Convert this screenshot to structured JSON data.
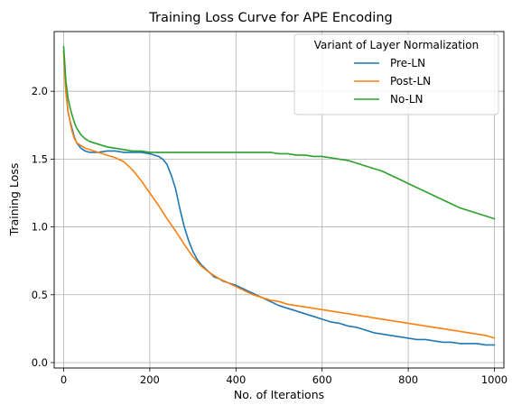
{
  "chart_data": {
    "type": "line",
    "title": "Training Loss Curve for APE Encoding",
    "xlabel": "No. of Iterations",
    "ylabel": "Training Loss",
    "xlim": [
      -22,
      1022
    ],
    "ylim": [
      -0.04,
      2.44
    ],
    "xticks": [
      0,
      200,
      400,
      600,
      800,
      1000
    ],
    "xtick_labels": [
      "0",
      "200",
      "400",
      "600",
      "800",
      "1000"
    ],
    "yticks": [
      0.0,
      0.5,
      1.0,
      1.5,
      2.0
    ],
    "ytick_labels": [
      "0.0",
      "0.5",
      "1.0",
      "1.5",
      "2.0"
    ],
    "grid": true,
    "legend": {
      "title": "Variant of Layer Normalization",
      "placement": "top-right"
    },
    "series": [
      {
        "name": "Pre-LN",
        "color": "#1f77b4",
        "x": [
          0,
          5,
          10,
          15,
          20,
          25,
          30,
          40,
          50,
          60,
          80,
          100,
          120,
          140,
          160,
          180,
          200,
          210,
          220,
          230,
          240,
          250,
          260,
          270,
          280,
          290,
          300,
          310,
          320,
          330,
          340,
          350,
          360,
          370,
          380,
          390,
          400,
          420,
          440,
          460,
          480,
          500,
          520,
          540,
          560,
          580,
          600,
          620,
          640,
          660,
          680,
          700,
          720,
          740,
          760,
          780,
          800,
          820,
          840,
          860,
          880,
          900,
          920,
          940,
          960,
          980,
          1000
        ],
        "values": [
          2.3,
          2.0,
          1.85,
          1.78,
          1.72,
          1.66,
          1.62,
          1.58,
          1.56,
          1.55,
          1.55,
          1.56,
          1.56,
          1.55,
          1.55,
          1.55,
          1.54,
          1.53,
          1.52,
          1.5,
          1.46,
          1.38,
          1.28,
          1.13,
          1.0,
          0.9,
          0.82,
          0.76,
          0.72,
          0.69,
          0.66,
          0.63,
          0.62,
          0.6,
          0.59,
          0.58,
          0.57,
          0.54,
          0.51,
          0.48,
          0.45,
          0.42,
          0.4,
          0.38,
          0.36,
          0.34,
          0.32,
          0.3,
          0.29,
          0.27,
          0.26,
          0.24,
          0.22,
          0.21,
          0.2,
          0.19,
          0.18,
          0.17,
          0.17,
          0.16,
          0.15,
          0.15,
          0.14,
          0.14,
          0.14,
          0.13,
          0.13
        ]
      },
      {
        "name": "Post-LN",
        "color": "#ff7f0e",
        "x": [
          0,
          5,
          10,
          15,
          20,
          25,
          30,
          40,
          50,
          60,
          80,
          100,
          120,
          140,
          160,
          180,
          200,
          220,
          240,
          260,
          280,
          300,
          320,
          340,
          360,
          380,
          400,
          420,
          440,
          460,
          480,
          500,
          520,
          540,
          560,
          580,
          600,
          620,
          640,
          660,
          680,
          700,
          720,
          740,
          760,
          780,
          800,
          820,
          840,
          860,
          880,
          900,
          920,
          940,
          960,
          980,
          1000
        ],
        "values": [
          2.28,
          2.0,
          1.86,
          1.77,
          1.7,
          1.65,
          1.62,
          1.6,
          1.58,
          1.57,
          1.55,
          1.53,
          1.51,
          1.48,
          1.42,
          1.34,
          1.25,
          1.16,
          1.06,
          0.97,
          0.87,
          0.78,
          0.71,
          0.66,
          0.62,
          0.59,
          0.56,
          0.53,
          0.5,
          0.48,
          0.46,
          0.45,
          0.43,
          0.42,
          0.41,
          0.4,
          0.39,
          0.38,
          0.37,
          0.36,
          0.35,
          0.34,
          0.33,
          0.32,
          0.31,
          0.3,
          0.29,
          0.28,
          0.27,
          0.26,
          0.25,
          0.24,
          0.23,
          0.22,
          0.21,
          0.2,
          0.18
        ]
      },
      {
        "name": "No-LN",
        "color": "#2ca02c",
        "x": [
          0,
          5,
          10,
          15,
          20,
          25,
          30,
          40,
          50,
          60,
          80,
          100,
          120,
          140,
          160,
          180,
          200,
          220,
          240,
          260,
          280,
          300,
          320,
          340,
          360,
          380,
          400,
          420,
          440,
          460,
          480,
          500,
          520,
          540,
          560,
          580,
          600,
          620,
          640,
          660,
          680,
          700,
          720,
          740,
          760,
          780,
          800,
          820,
          840,
          860,
          880,
          900,
          920,
          940,
          960,
          980,
          1000
        ],
        "values": [
          2.33,
          2.08,
          1.95,
          1.88,
          1.82,
          1.77,
          1.73,
          1.68,
          1.65,
          1.63,
          1.61,
          1.59,
          1.58,
          1.57,
          1.56,
          1.56,
          1.55,
          1.55,
          1.55,
          1.55,
          1.55,
          1.55,
          1.55,
          1.55,
          1.55,
          1.55,
          1.55,
          1.55,
          1.55,
          1.55,
          1.55,
          1.54,
          1.54,
          1.53,
          1.53,
          1.52,
          1.52,
          1.51,
          1.5,
          1.49,
          1.47,
          1.45,
          1.43,
          1.41,
          1.38,
          1.35,
          1.32,
          1.29,
          1.26,
          1.23,
          1.2,
          1.17,
          1.14,
          1.12,
          1.1,
          1.08,
          1.06
        ]
      }
    ]
  }
}
